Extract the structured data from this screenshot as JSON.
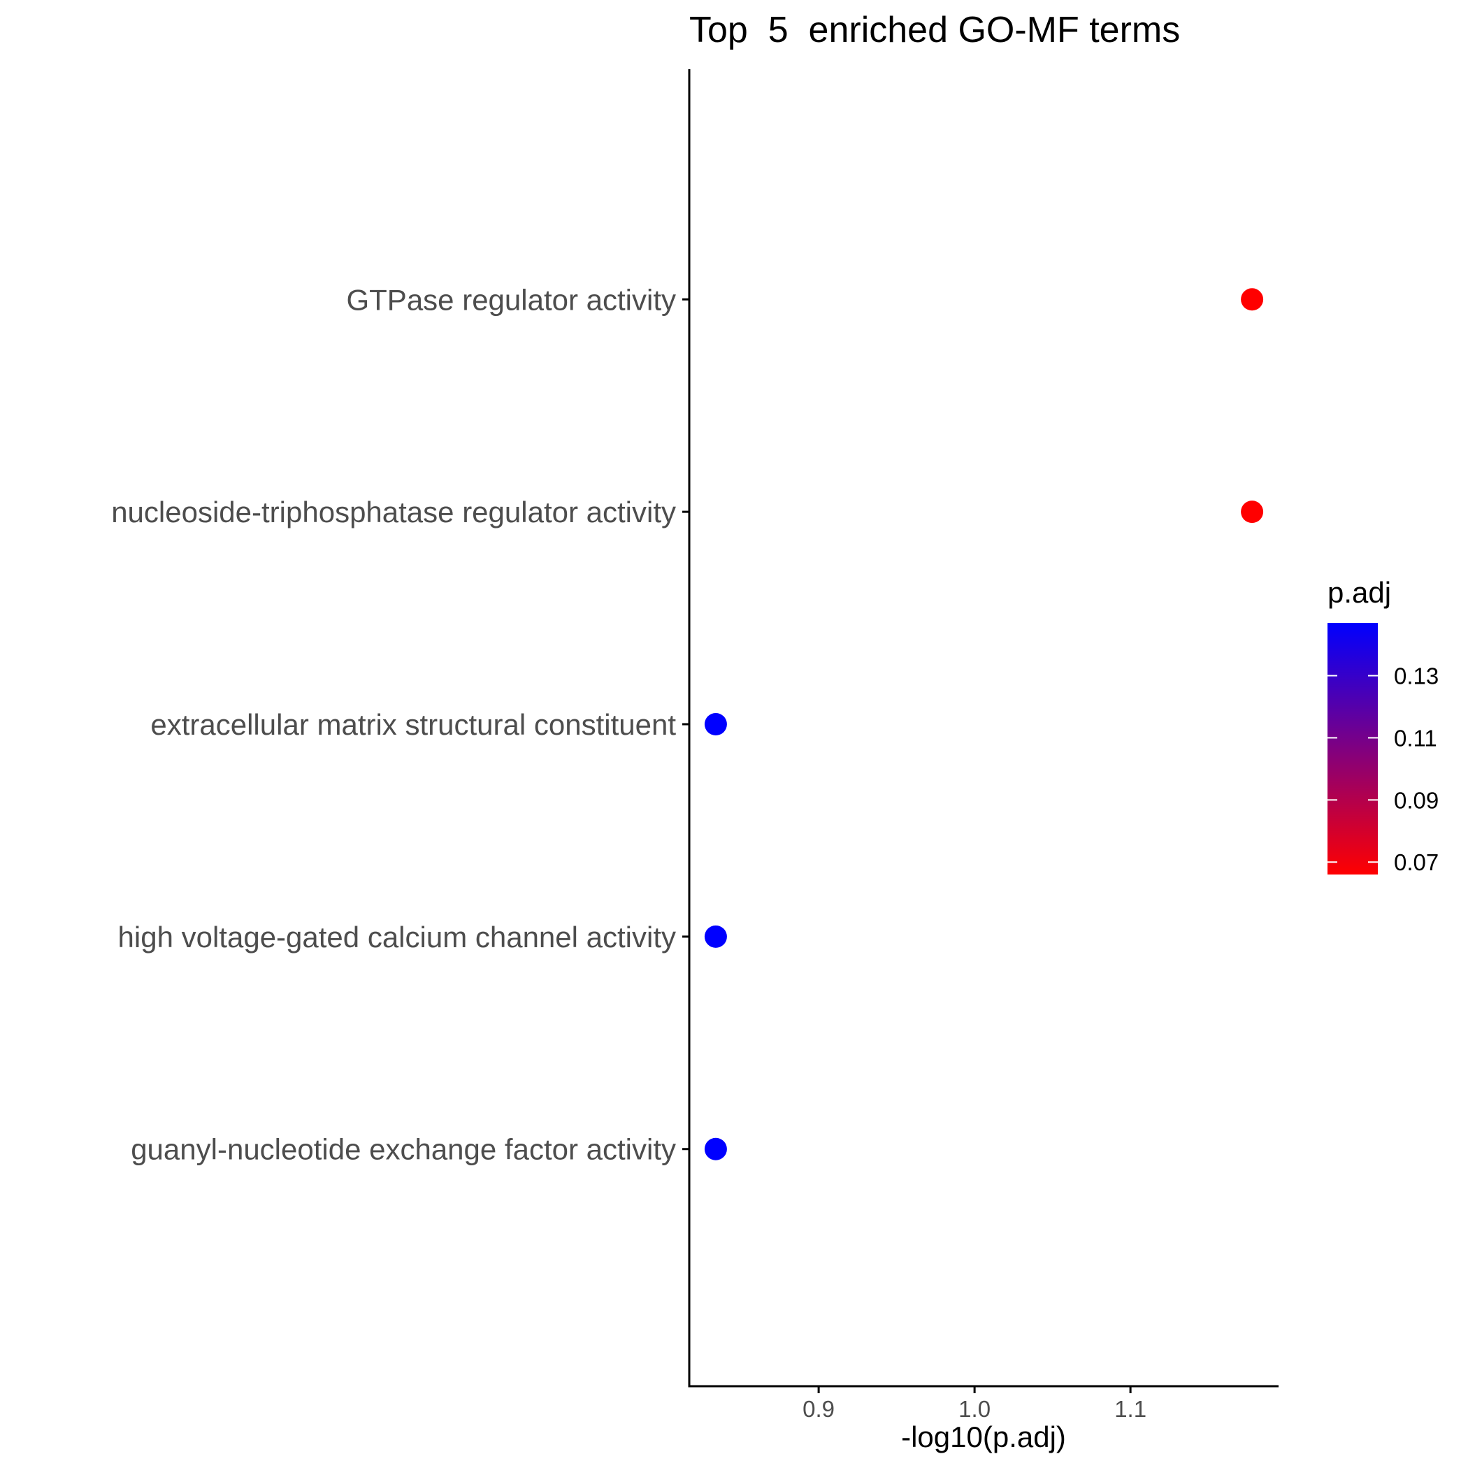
{
  "chart_data": {
    "type": "scatter",
    "title": "Top  5  enriched GO-MF terms",
    "xlabel": "-log10(p.adj)",
    "ylabel": "",
    "xlim": [
      0.817,
      1.195
    ],
    "x_ticks": [
      0.9,
      1.0,
      1.1
    ],
    "x_tick_labels": [
      "0.9",
      "1.0",
      "1.1"
    ],
    "categories": [
      "GTPase regulator activity",
      "nucleoside-triphosphatase regulator activity",
      "extracellular matrix structural constituent",
      "high voltage-gated calcium channel activity",
      "guanyl-nucleotide exchange factor activity"
    ],
    "points": [
      {
        "term": "GTPase regulator activity",
        "x": 1.178,
        "p_adj": 0.066
      },
      {
        "term": "nucleoside-triphosphatase regulator activity",
        "x": 1.178,
        "p_adj": 0.066
      },
      {
        "term": "extracellular matrix structural constituent",
        "x": 0.834,
        "p_adj": 0.147
      },
      {
        "term": "high voltage-gated calcium channel activity",
        "x": 0.834,
        "p_adj": 0.147
      },
      {
        "term": "guanyl-nucleotide exchange factor activity",
        "x": 0.834,
        "p_adj": 0.147
      }
    ],
    "legend": {
      "title": "p.adj",
      "placement": "right",
      "color_low": "#ff0000",
      "color_high": "#0000ff",
      "range": [
        0.066,
        0.147
      ],
      "ticks": [
        0.07,
        0.09,
        0.11,
        0.13
      ],
      "tick_labels": [
        "0.07",
        "0.09",
        "0.11",
        "0.13"
      ]
    },
    "grid": false
  }
}
